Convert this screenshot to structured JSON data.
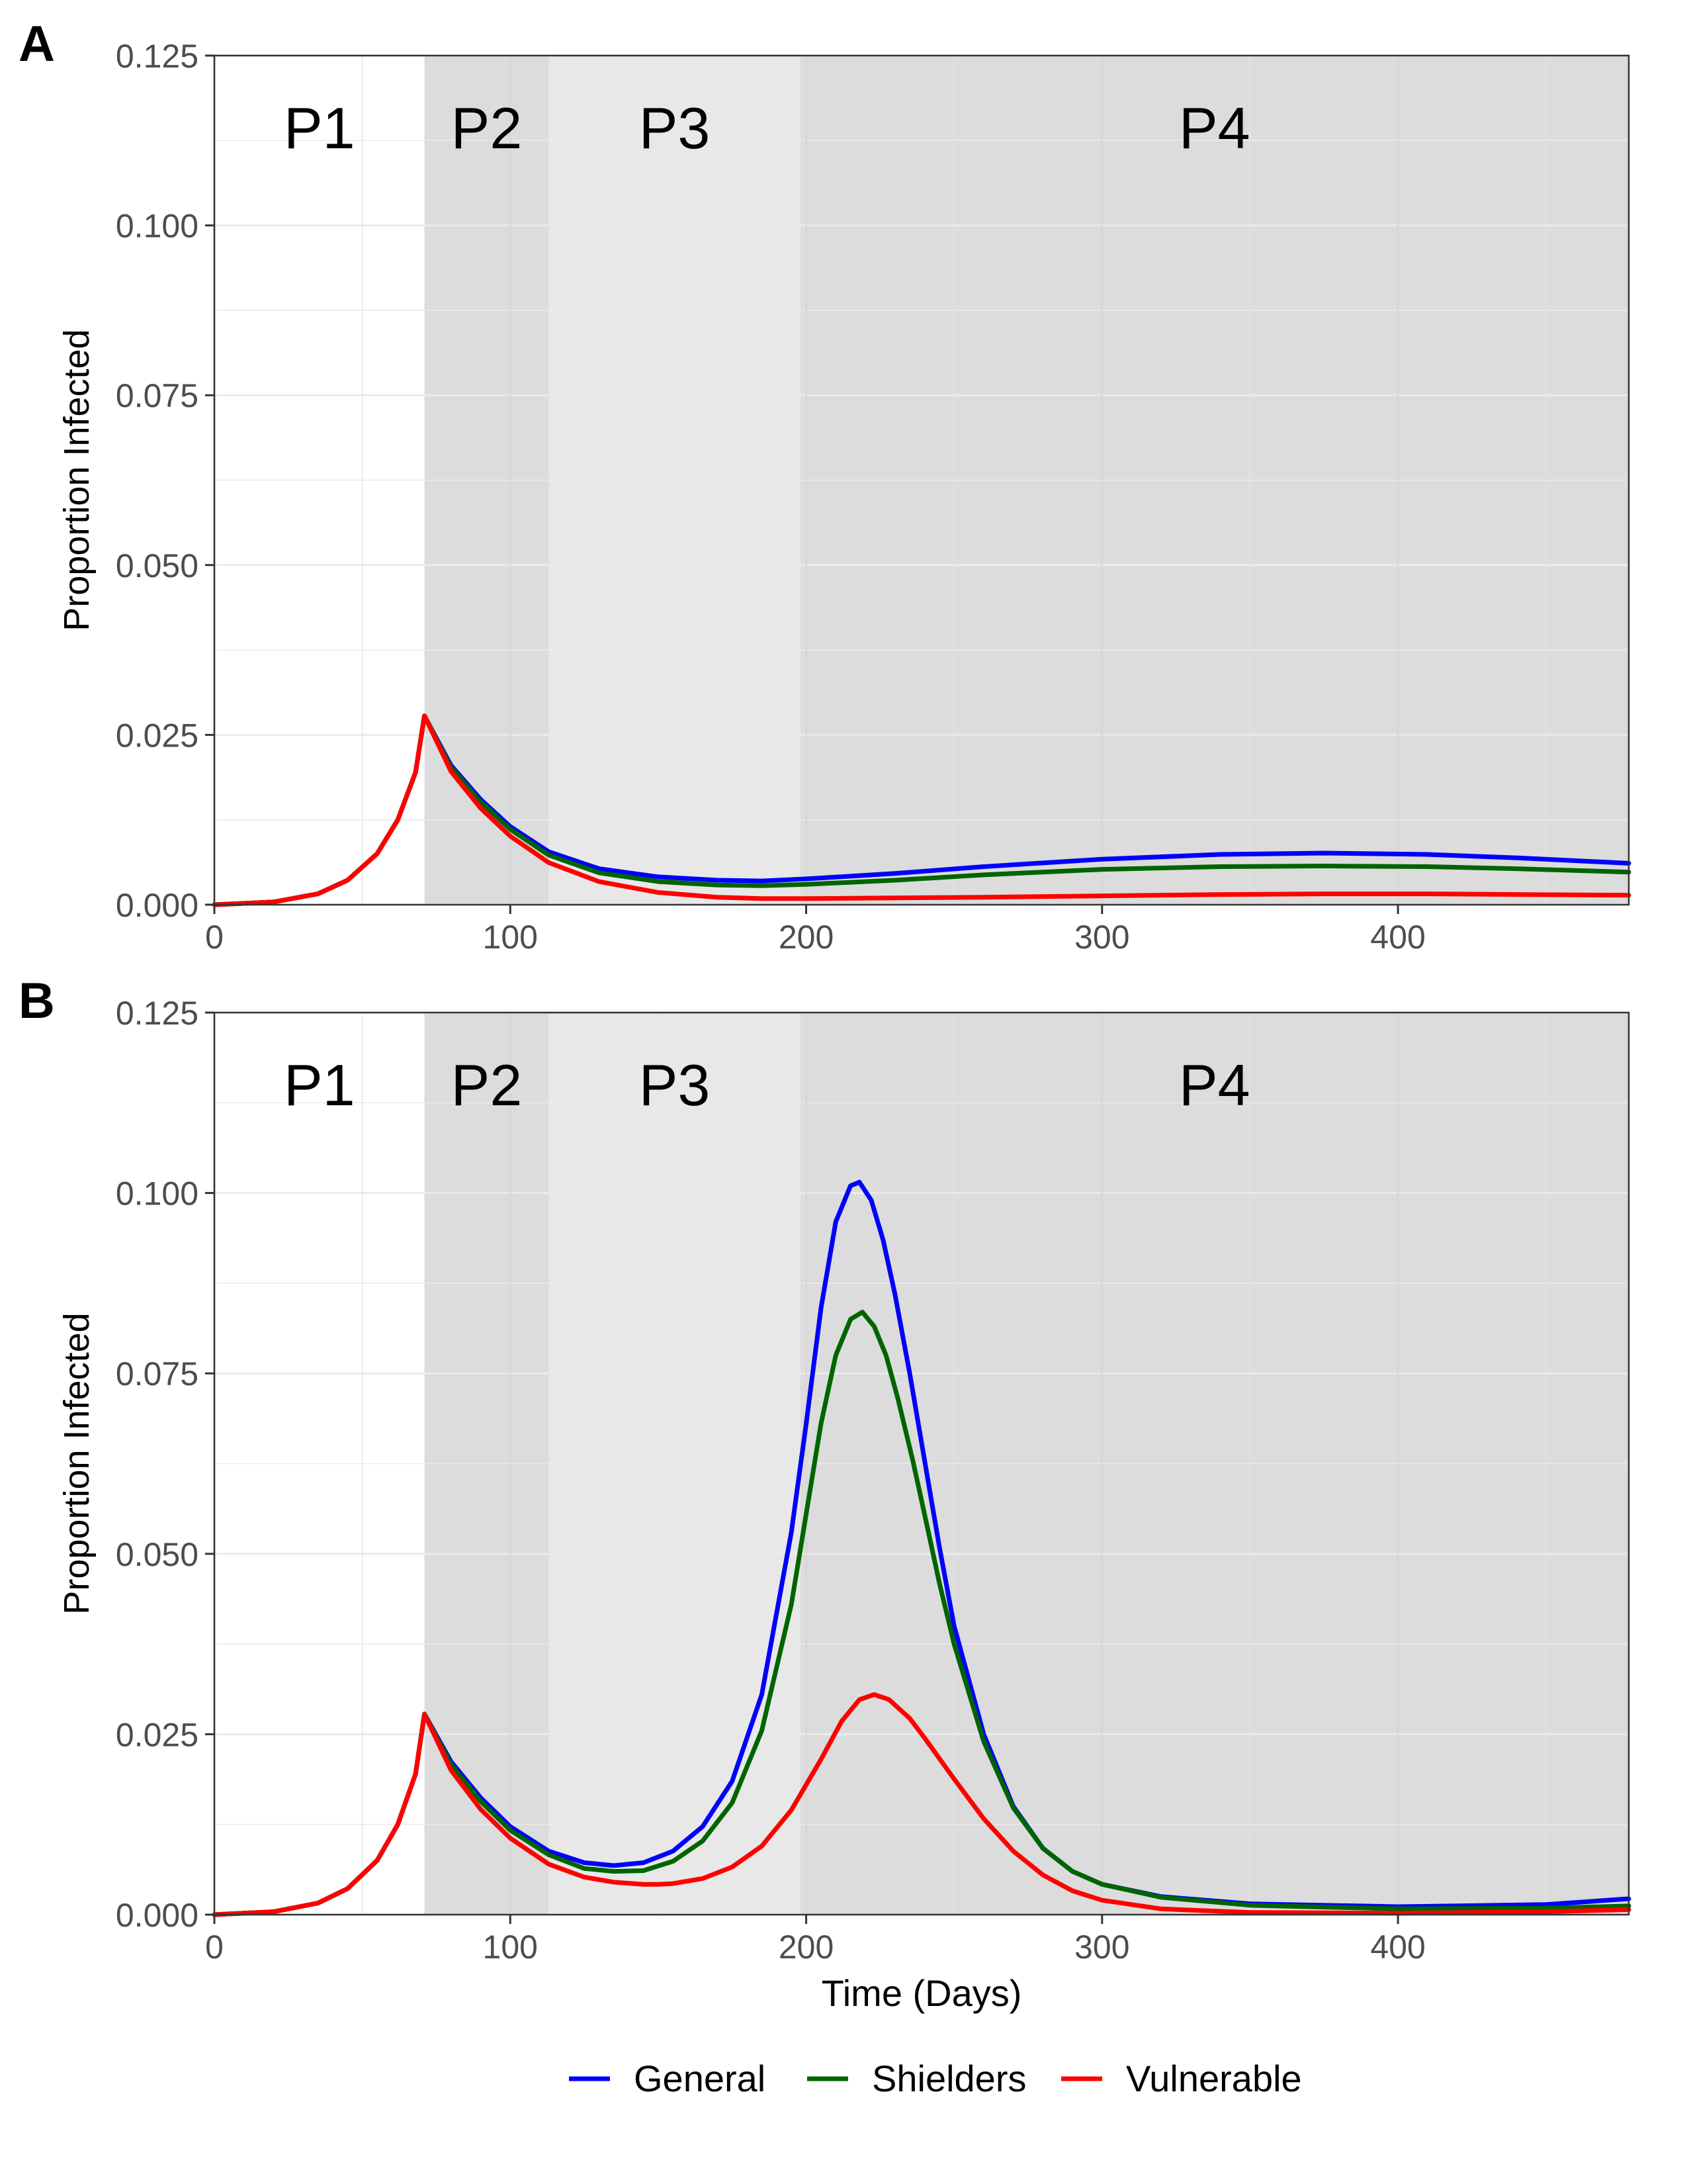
{
  "colors": {
    "General": "#0000ff",
    "Shielders": "#006400",
    "Vulnerable": "#ff0000",
    "phase_p1": "#ffffff",
    "phase_p2": "#dcdcdc",
    "phase_p3": "#e8e8e8",
    "phase_p4": "#dcdcdc",
    "grid": "#ebebeb",
    "axis_text": "#4d4d4d"
  },
  "legend": {
    "position": "bottom",
    "items": [
      "General",
      "Shielders",
      "Vulnerable"
    ]
  },
  "chart_data": [
    {
      "type": "line",
      "panel_label": "A",
      "title": "",
      "xlabel": "",
      "ylabel": "Proportion Infected",
      "xlim": [
        0,
        478
      ],
      "ylim": [
        0,
        0.125
      ],
      "xticks": [
        0,
        100,
        200,
        300,
        400
      ],
      "xtick_labels": [
        "0",
        "100",
        "200",
        "300",
        "400"
      ],
      "yticks": [
        0,
        0.025,
        0.05,
        0.075,
        0.1,
        0.125
      ],
      "ytick_labels": [
        "0.000",
        "0.025",
        "0.050",
        "0.075",
        "0.100",
        "0.125"
      ],
      "grid": true,
      "phases": [
        {
          "label": "P1",
          "start": 0,
          "end": 71
        },
        {
          "label": "P2",
          "start": 71,
          "end": 113
        },
        {
          "label": "P3",
          "start": 113,
          "end": 198
        },
        {
          "label": "P4",
          "start": 198,
          "end": 478
        }
      ],
      "series": [
        {
          "name": "General",
          "x": [
            0,
            20,
            35,
            45,
            55,
            62,
            68,
            71,
            80,
            90,
            100,
            113,
            130,
            150,
            170,
            185,
            200,
            230,
            260,
            300,
            340,
            375,
            410,
            440,
            478
          ],
          "y": [
            0,
            0.0004,
            0.0016,
            0.0036,
            0.0075,
            0.0125,
            0.0195,
            0.0278,
            0.0205,
            0.0155,
            0.0115,
            0.0078,
            0.0053,
            0.0041,
            0.0036,
            0.0035,
            0.0038,
            0.0046,
            0.0056,
            0.0067,
            0.0074,
            0.0076,
            0.0074,
            0.0069,
            0.0061
          ]
        },
        {
          "name": "Shielders",
          "x": [
            0,
            20,
            35,
            45,
            55,
            62,
            68,
            71,
            80,
            90,
            100,
            113,
            130,
            150,
            170,
            185,
            200,
            230,
            260,
            300,
            340,
            375,
            410,
            440,
            478
          ],
          "y": [
            0,
            0.0004,
            0.0016,
            0.0036,
            0.0075,
            0.0125,
            0.0195,
            0.0278,
            0.0202,
            0.0151,
            0.0111,
            0.0073,
            0.0047,
            0.0034,
            0.0029,
            0.0028,
            0.003,
            0.0036,
            0.0044,
            0.0052,
            0.0056,
            0.0057,
            0.0056,
            0.0053,
            0.0048
          ]
        },
        {
          "name": "Vulnerable",
          "x": [
            0,
            20,
            35,
            45,
            55,
            62,
            68,
            71,
            80,
            90,
            100,
            113,
            130,
            150,
            170,
            185,
            200,
            230,
            260,
            300,
            340,
            375,
            410,
            440,
            478
          ],
          "y": [
            0,
            0.0004,
            0.0016,
            0.0036,
            0.0075,
            0.0125,
            0.0195,
            0.0278,
            0.0196,
            0.0142,
            0.0101,
            0.0062,
            0.0034,
            0.0018,
            0.0011,
            0.0009,
            0.0009,
            0.001,
            0.0011,
            0.0013,
            0.0015,
            0.0016,
            0.0016,
            0.0015,
            0.0014
          ]
        }
      ]
    },
    {
      "type": "line",
      "panel_label": "B",
      "title": "",
      "xlabel": "Time (Days)",
      "ylabel": "Proportion Infected",
      "xlim": [
        0,
        478
      ],
      "ylim": [
        0,
        0.125
      ],
      "xticks": [
        0,
        100,
        200,
        300,
        400
      ],
      "xtick_labels": [
        "0",
        "100",
        "200",
        "300",
        "400"
      ],
      "yticks": [
        0,
        0.025,
        0.05,
        0.075,
        0.1,
        0.125
      ],
      "ytick_labels": [
        "0.000",
        "0.025",
        "0.050",
        "0.075",
        "0.100",
        "0.125"
      ],
      "grid": true,
      "phases": [
        {
          "label": "P1",
          "start": 0,
          "end": 71
        },
        {
          "label": "P2",
          "start": 71,
          "end": 113
        },
        {
          "label": "P3",
          "start": 113,
          "end": 198
        },
        {
          "label": "P4",
          "start": 198,
          "end": 478
        }
      ],
      "series": [
        {
          "name": "General",
          "x": [
            0,
            20,
            35,
            45,
            55,
            62,
            68,
            71,
            80,
            90,
            100,
            113,
            125,
            135,
            145,
            155,
            165,
            175,
            185,
            195,
            200,
            205,
            210,
            215,
            218,
            222,
            226,
            230,
            235,
            240,
            245,
            250,
            260,
            270,
            280,
            290,
            300,
            320,
            350,
            400,
            450,
            478
          ],
          "y": [
            0,
            0.0004,
            0.0016,
            0.0036,
            0.0075,
            0.0125,
            0.0195,
            0.0278,
            0.0212,
            0.0162,
            0.0122,
            0.0088,
            0.0072,
            0.0068,
            0.0072,
            0.0088,
            0.0122,
            0.0185,
            0.0305,
            0.053,
            0.068,
            0.084,
            0.096,
            0.101,
            0.1015,
            0.099,
            0.0935,
            0.086,
            0.075,
            0.063,
            0.051,
            0.04,
            0.025,
            0.015,
            0.0092,
            0.006,
            0.0042,
            0.0025,
            0.0015,
            0.0011,
            0.0014,
            0.0022
          ]
        },
        {
          "name": "Shielders",
          "x": [
            0,
            20,
            35,
            45,
            55,
            62,
            68,
            71,
            80,
            90,
            100,
            113,
            125,
            135,
            145,
            155,
            165,
            175,
            185,
            195,
            200,
            205,
            210,
            215,
            219,
            223,
            227,
            231,
            236,
            240,
            245,
            250,
            260,
            270,
            280,
            290,
            300,
            320,
            350,
            400,
            450,
            478
          ],
          "y": [
            0,
            0.0004,
            0.0016,
            0.0036,
            0.0075,
            0.0125,
            0.0195,
            0.0278,
            0.0208,
            0.0157,
            0.0117,
            0.0083,
            0.0064,
            0.006,
            0.0061,
            0.0074,
            0.0102,
            0.0155,
            0.0255,
            0.043,
            0.0555,
            0.068,
            0.0775,
            0.0825,
            0.0835,
            0.0815,
            0.0775,
            0.0715,
            0.063,
            0.0555,
            0.046,
            0.0375,
            0.024,
            0.0148,
            0.0092,
            0.006,
            0.0042,
            0.0024,
            0.0013,
            0.0008,
            0.0009,
            0.0012
          ]
        },
        {
          "name": "Vulnerable",
          "x": [
            0,
            20,
            35,
            45,
            55,
            62,
            68,
            71,
            80,
            90,
            100,
            113,
            125,
            135,
            145,
            150,
            155,
            165,
            175,
            185,
            195,
            205,
            212,
            218,
            223,
            228,
            235,
            240,
            250,
            260,
            270,
            280,
            290,
            300,
            320,
            350,
            400,
            450,
            478
          ],
          "y": [
            0,
            0.0004,
            0.0016,
            0.0036,
            0.0075,
            0.0125,
            0.0195,
            0.0278,
            0.02,
            0.0146,
            0.0106,
            0.007,
            0.0052,
            0.0045,
            0.0042,
            0.0042,
            0.0043,
            0.005,
            0.0066,
            0.0095,
            0.0145,
            0.0215,
            0.0268,
            0.0298,
            0.0305,
            0.0298,
            0.0272,
            0.0245,
            0.0188,
            0.0133,
            0.0088,
            0.0055,
            0.0033,
            0.002,
            0.0008,
            0.0003,
            0.0002,
            0.0004,
            0.0007
          ]
        }
      ]
    }
  ]
}
